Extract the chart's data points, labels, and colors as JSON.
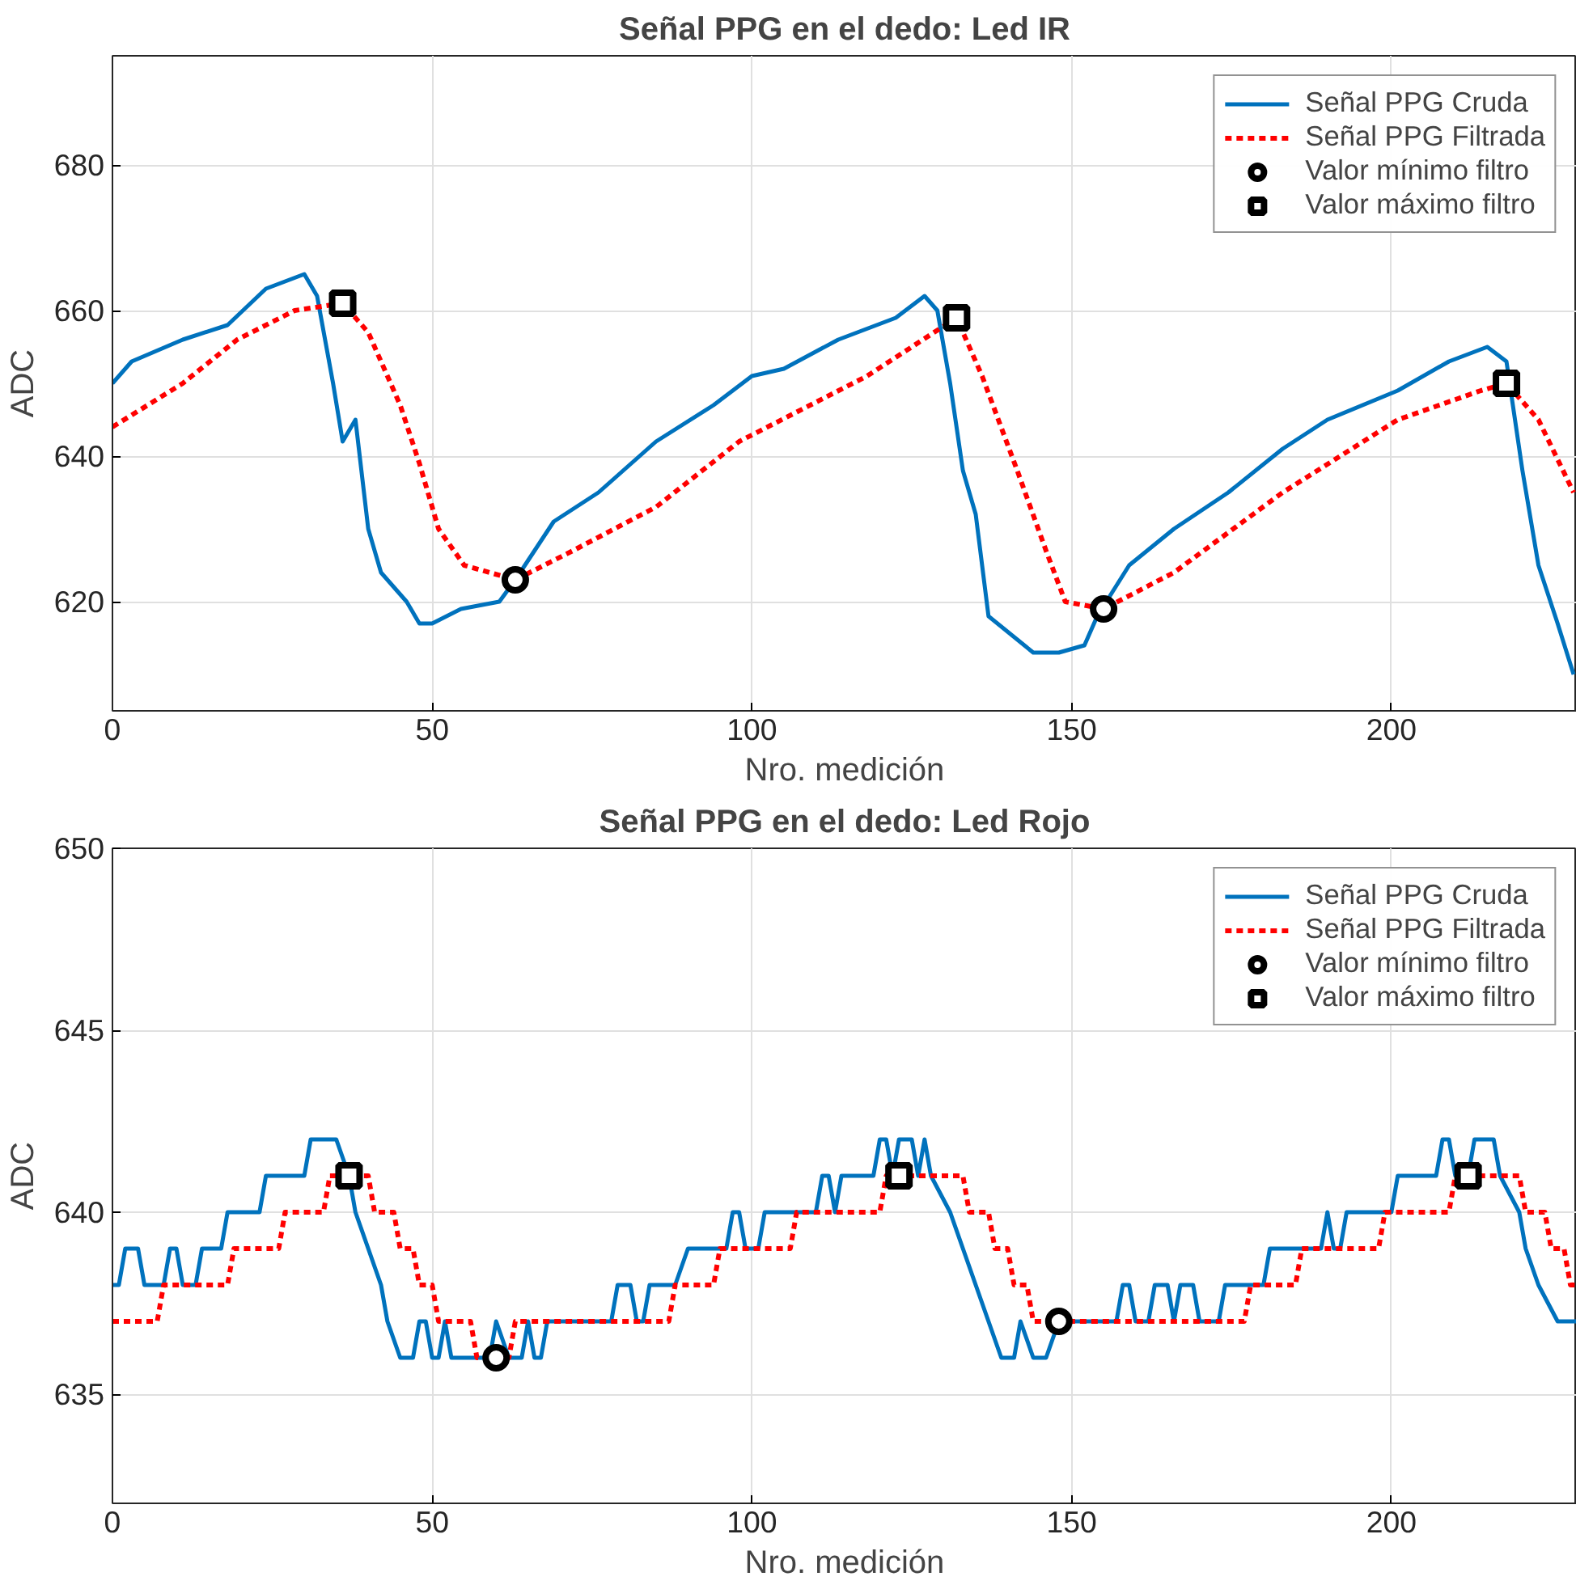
{
  "chart_data": [
    {
      "type": "line",
      "title": "Señal PPG en el dedo: Led IR",
      "xlabel": "Nro. medición",
      "ylabel": "ADC",
      "xlim": [
        0,
        229
      ],
      "xticks": [
        0,
        50,
        100,
        150,
        200
      ],
      "ylim": [
        605,
        695
      ],
      "yticks": [
        620,
        640,
        660,
        680
      ],
      "grid": true,
      "legend": "top right",
      "series": [
        {
          "name": "Señal PPG Cruda",
          "color": "#0072bd",
          "line_style": "solid",
          "x": [
            0,
            3,
            11,
            18,
            24,
            30,
            32,
            34.5,
            36,
            38,
            40,
            42,
            46,
            48,
            50,
            54.5,
            60.5,
            63,
            69,
            76,
            85,
            94,
            100,
            105,
            113.5,
            122.5,
            127,
            129,
            131,
            133,
            135,
            137,
            144,
            148,
            152,
            154,
            159,
            166,
            174.5,
            183,
            190,
            201,
            209,
            215,
            218,
            220.5,
            223,
            226,
            228.5
          ],
          "values": [
            650,
            653,
            656,
            658,
            663,
            665,
            662,
            650,
            642,
            645,
            630,
            624,
            620,
            617,
            617,
            619,
            620,
            623,
            631,
            635,
            642,
            647,
            651,
            652,
            656,
            659,
            662,
            660,
            650,
            638,
            632,
            618,
            613,
            613,
            614,
            618,
            625,
            630,
            635,
            641,
            645,
            649,
            653,
            655,
            653,
            638,
            625,
            617,
            610
          ]
        },
        {
          "name": "Señal PPG Filtrada",
          "color": "#ff0000",
          "line_style": "dotted",
          "x": [
            0,
            11,
            19.5,
            28.5,
            36,
            40,
            45,
            48,
            51,
            55,
            63,
            72,
            85,
            98,
            118,
            132,
            136,
            141.5,
            146,
            149,
            155,
            166,
            183,
            201,
            214,
            218,
            223,
            228.5
          ],
          "values": [
            644,
            650,
            656,
            660,
            661,
            657,
            647,
            639,
            630,
            625,
            623,
            627,
            633,
            642,
            651,
            659,
            651,
            638,
            627,
            620,
            619,
            624,
            635,
            645,
            649,
            650,
            645,
            635
          ]
        },
        {
          "name": "Valor mínimo filtro",
          "color": "#000000",
          "type": "scatter",
          "marker": "circle",
          "x": [
            63,
            155
          ],
          "values": [
            623,
            619
          ]
        },
        {
          "name": "Valor máximo filtro",
          "color": "#000000",
          "type": "scatter",
          "marker": "square",
          "x": [
            36,
            132,
            218
          ],
          "values": [
            661,
            659,
            650
          ]
        }
      ]
    },
    {
      "type": "line",
      "title": "Señal PPG en el dedo: Led Rojo",
      "xlabel": "Nro. medición",
      "ylabel": "ADC",
      "xlim": [
        0,
        229
      ],
      "xticks": [
        0,
        50,
        100,
        150,
        200
      ],
      "ylim": [
        632,
        650
      ],
      "yticks": [
        635,
        640,
        645,
        650
      ],
      "grid": true,
      "legend": "top right",
      "series": [
        {
          "name": "Señal PPG Cruda",
          "color": "#0072bd",
          "line_style": "solid",
          "x": [
            0,
            1,
            2,
            4,
            5,
            8,
            9,
            10,
            11,
            13,
            14,
            17,
            18,
            23,
            24,
            30,
            31,
            35,
            37,
            38,
            40,
            42,
            43,
            45,
            47,
            48,
            49,
            50,
            51,
            52,
            53,
            59,
            60,
            62,
            64,
            65,
            66,
            67,
            68,
            78,
            79,
            81,
            82,
            83,
            84,
            88,
            90,
            96,
            97,
            98,
            99,
            101,
            102,
            110,
            111,
            112,
            113,
            114,
            119,
            120,
            121,
            122,
            123,
            125,
            126,
            127,
            128,
            131,
            133,
            135,
            137,
            139,
            141,
            142,
            144,
            146,
            148,
            157,
            158,
            159,
            160,
            162,
            163,
            165,
            166,
            167,
            169,
            170,
            173,
            174,
            180,
            181,
            189,
            190,
            191,
            192,
            193,
            200,
            201,
            207,
            208,
            209,
            210,
            212,
            213,
            216,
            217,
            220,
            221,
            223,
            226,
            229
          ],
          "values": [
            638,
            638,
            639,
            639,
            638,
            638,
            639,
            639,
            638,
            638,
            639,
            639,
            640,
            640,
            641,
            641,
            642,
            642,
            641,
            640,
            639,
            638,
            637,
            636,
            636,
            637,
            637,
            636,
            636,
            637,
            636,
            636,
            637,
            636,
            636,
            637,
            636,
            636,
            637,
            637,
            638,
            638,
            637,
            637,
            638,
            638,
            639,
            639,
            640,
            640,
            639,
            639,
            640,
            640,
            641,
            641,
            640,
            641,
            641,
            642,
            642,
            641,
            642,
            642,
            641,
            642,
            641,
            640,
            639,
            638,
            637,
            636,
            636,
            637,
            636,
            636,
            637,
            637,
            638,
            638,
            637,
            637,
            638,
            638,
            637,
            638,
            638,
            637,
            637,
            638,
            638,
            639,
            639,
            640,
            639,
            639,
            640,
            640,
            641,
            641,
            642,
            642,
            641,
            641,
            642,
            642,
            641,
            640,
            639,
            638,
            637,
            637
          ]
        },
        {
          "name": "Señal PPG Filtrada",
          "color": "#ff0000",
          "line_style": "dotted",
          "x": [
            0,
            7,
            8,
            18,
            19,
            26,
            27,
            33,
            34,
            40,
            41,
            44,
            45,
            47,
            48,
            50,
            51,
            56,
            57,
            62,
            63,
            87,
            88,
            94,
            95,
            106,
            107,
            120,
            121,
            133,
            134,
            137,
            138,
            140,
            141,
            143,
            144,
            177,
            178,
            185,
            186,
            198,
            199,
            209,
            210,
            220,
            221,
            224,
            225,
            227,
            228,
            229
          ],
          "values": [
            637,
            637,
            638,
            638,
            639,
            639,
            640,
            640,
            641,
            641,
            640,
            640,
            639,
            639,
            638,
            638,
            637,
            637,
            636,
            636,
            637,
            637,
            638,
            638,
            639,
            639,
            640,
            640,
            641,
            641,
            640,
            640,
            639,
            639,
            638,
            638,
            637,
            637,
            638,
            638,
            639,
            639,
            640,
            640,
            641,
            641,
            640,
            640,
            639,
            639,
            638,
            638
          ]
        },
        {
          "name": "Valor mínimo filtro",
          "color": "#000000",
          "type": "scatter",
          "marker": "circle",
          "x": [
            60,
            148
          ],
          "values": [
            636,
            637
          ]
        },
        {
          "name": "Valor máximo filtro",
          "color": "#000000",
          "type": "scatter",
          "marker": "square",
          "x": [
            37,
            123,
            212
          ],
          "values": [
            641,
            641,
            641
          ]
        }
      ]
    }
  ]
}
